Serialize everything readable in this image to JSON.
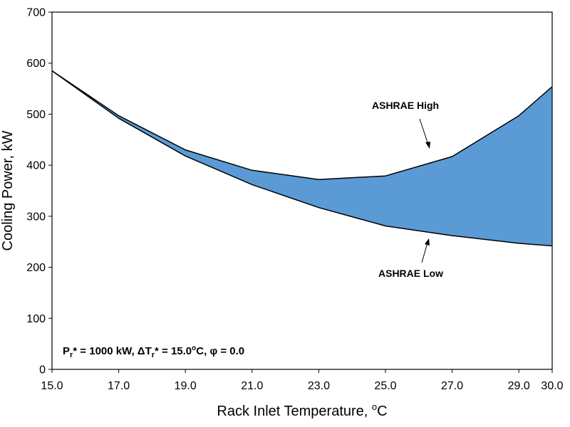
{
  "chart_data": {
    "type": "area",
    "xlabel": "Rack Inlet Temperature, °C",
    "xlabel_parts": {
      "main": "Rack Inlet Temperature, ",
      "sup": "o",
      "unit": "C"
    },
    "ylabel": "Cooling Power, kW",
    "xlim": [
      15.0,
      30.0
    ],
    "ylim": [
      0,
      700
    ],
    "x_ticks": [
      15.0,
      17.0,
      19.0,
      21.0,
      23.0,
      25.0,
      27.0,
      29.0,
      30.0
    ],
    "x_tick_labels": [
      "15.0",
      "17.0",
      "19.0",
      "21.0",
      "23.0",
      "25.0",
      "27.0",
      "29.0",
      "30.0"
    ],
    "y_ticks": [
      0,
      100,
      200,
      300,
      400,
      500,
      600,
      700
    ],
    "y_tick_labels": [
      "0",
      "100",
      "200",
      "300",
      "400",
      "500",
      "600",
      "700"
    ],
    "fill_color": "#5b9bd5",
    "series": [
      {
        "name": "ASHRAE High",
        "x": [
          15,
          17,
          19,
          21,
          23,
          25,
          27,
          29,
          30
        ],
        "values": [
          585,
          497,
          430,
          390,
          372,
          379,
          417,
          497,
          554
        ]
      },
      {
        "name": "ASHRAE Low",
        "x": [
          15,
          17,
          19,
          21,
          23,
          25,
          27,
          29,
          30
        ],
        "values": [
          585,
          492,
          418,
          362,
          317,
          281,
          262,
          247,
          242
        ]
      }
    ],
    "annotations": [
      {
        "text": "ASHRAE High",
        "target_series": "ASHRAE High",
        "target_x": 27.0
      },
      {
        "text": "ASHRAE Low",
        "target_series": "ASHRAE Low",
        "target_x": 27.0
      }
    ],
    "params_label": {
      "p_main": "P",
      "p_sub": "r",
      "p_val": "* = 1000 kW, ",
      "delta": "Δ",
      "t_main": "T",
      "t_sub": "r",
      "t_val": "* = 15.0",
      "deg_sup": "o",
      "deg_unit": "C, ",
      "phi": "φ",
      "phi_val": " = 0.0"
    }
  }
}
